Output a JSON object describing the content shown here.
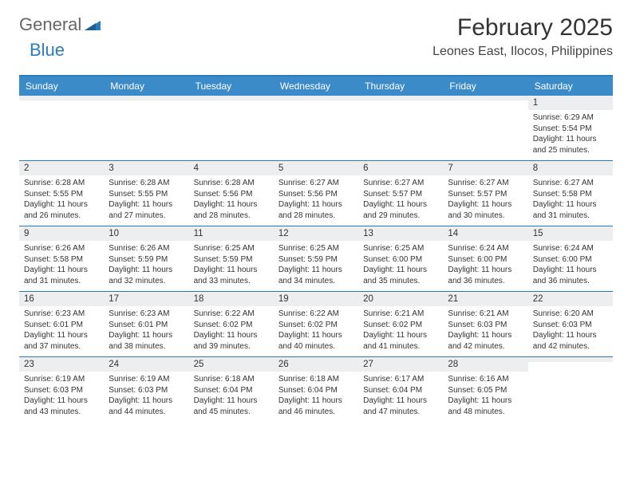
{
  "logo": {
    "part1": "General",
    "part2": "Blue",
    "icon_color": "#2b7bbf"
  },
  "title": "February 2025",
  "location": "Leones East, Ilocos, Philippines",
  "colors": {
    "header_bar": "#3b8bc9",
    "divider": "#2b7bbf",
    "daynum_bg": "#eceeef",
    "text": "#333333",
    "bg": "#ffffff"
  },
  "days_of_week": [
    "Sunday",
    "Monday",
    "Tuesday",
    "Wednesday",
    "Thursday",
    "Friday",
    "Saturday"
  ],
  "weeks": [
    [
      {
        "n": "",
        "l1": "",
        "l2": "",
        "l3": "",
        "l4": ""
      },
      {
        "n": "",
        "l1": "",
        "l2": "",
        "l3": "",
        "l4": ""
      },
      {
        "n": "",
        "l1": "",
        "l2": "",
        "l3": "",
        "l4": ""
      },
      {
        "n": "",
        "l1": "",
        "l2": "",
        "l3": "",
        "l4": ""
      },
      {
        "n": "",
        "l1": "",
        "l2": "",
        "l3": "",
        "l4": ""
      },
      {
        "n": "",
        "l1": "",
        "l2": "",
        "l3": "",
        "l4": ""
      },
      {
        "n": "1",
        "l1": "Sunrise: 6:29 AM",
        "l2": "Sunset: 5:54 PM",
        "l3": "Daylight: 11 hours",
        "l4": "and 25 minutes."
      }
    ],
    [
      {
        "n": "2",
        "l1": "Sunrise: 6:28 AM",
        "l2": "Sunset: 5:55 PM",
        "l3": "Daylight: 11 hours",
        "l4": "and 26 minutes."
      },
      {
        "n": "3",
        "l1": "Sunrise: 6:28 AM",
        "l2": "Sunset: 5:55 PM",
        "l3": "Daylight: 11 hours",
        "l4": "and 27 minutes."
      },
      {
        "n": "4",
        "l1": "Sunrise: 6:28 AM",
        "l2": "Sunset: 5:56 PM",
        "l3": "Daylight: 11 hours",
        "l4": "and 28 minutes."
      },
      {
        "n": "5",
        "l1": "Sunrise: 6:27 AM",
        "l2": "Sunset: 5:56 PM",
        "l3": "Daylight: 11 hours",
        "l4": "and 28 minutes."
      },
      {
        "n": "6",
        "l1": "Sunrise: 6:27 AM",
        "l2": "Sunset: 5:57 PM",
        "l3": "Daylight: 11 hours",
        "l4": "and 29 minutes."
      },
      {
        "n": "7",
        "l1": "Sunrise: 6:27 AM",
        "l2": "Sunset: 5:57 PM",
        "l3": "Daylight: 11 hours",
        "l4": "and 30 minutes."
      },
      {
        "n": "8",
        "l1": "Sunrise: 6:27 AM",
        "l2": "Sunset: 5:58 PM",
        "l3": "Daylight: 11 hours",
        "l4": "and 31 minutes."
      }
    ],
    [
      {
        "n": "9",
        "l1": "Sunrise: 6:26 AM",
        "l2": "Sunset: 5:58 PM",
        "l3": "Daylight: 11 hours",
        "l4": "and 31 minutes."
      },
      {
        "n": "10",
        "l1": "Sunrise: 6:26 AM",
        "l2": "Sunset: 5:59 PM",
        "l3": "Daylight: 11 hours",
        "l4": "and 32 minutes."
      },
      {
        "n": "11",
        "l1": "Sunrise: 6:25 AM",
        "l2": "Sunset: 5:59 PM",
        "l3": "Daylight: 11 hours",
        "l4": "and 33 minutes."
      },
      {
        "n": "12",
        "l1": "Sunrise: 6:25 AM",
        "l2": "Sunset: 5:59 PM",
        "l3": "Daylight: 11 hours",
        "l4": "and 34 minutes."
      },
      {
        "n": "13",
        "l1": "Sunrise: 6:25 AM",
        "l2": "Sunset: 6:00 PM",
        "l3": "Daylight: 11 hours",
        "l4": "and 35 minutes."
      },
      {
        "n": "14",
        "l1": "Sunrise: 6:24 AM",
        "l2": "Sunset: 6:00 PM",
        "l3": "Daylight: 11 hours",
        "l4": "and 36 minutes."
      },
      {
        "n": "15",
        "l1": "Sunrise: 6:24 AM",
        "l2": "Sunset: 6:00 PM",
        "l3": "Daylight: 11 hours",
        "l4": "and 36 minutes."
      }
    ],
    [
      {
        "n": "16",
        "l1": "Sunrise: 6:23 AM",
        "l2": "Sunset: 6:01 PM",
        "l3": "Daylight: 11 hours",
        "l4": "and 37 minutes."
      },
      {
        "n": "17",
        "l1": "Sunrise: 6:23 AM",
        "l2": "Sunset: 6:01 PM",
        "l3": "Daylight: 11 hours",
        "l4": "and 38 minutes."
      },
      {
        "n": "18",
        "l1": "Sunrise: 6:22 AM",
        "l2": "Sunset: 6:02 PM",
        "l3": "Daylight: 11 hours",
        "l4": "and 39 minutes."
      },
      {
        "n": "19",
        "l1": "Sunrise: 6:22 AM",
        "l2": "Sunset: 6:02 PM",
        "l3": "Daylight: 11 hours",
        "l4": "and 40 minutes."
      },
      {
        "n": "20",
        "l1": "Sunrise: 6:21 AM",
        "l2": "Sunset: 6:02 PM",
        "l3": "Daylight: 11 hours",
        "l4": "and 41 minutes."
      },
      {
        "n": "21",
        "l1": "Sunrise: 6:21 AM",
        "l2": "Sunset: 6:03 PM",
        "l3": "Daylight: 11 hours",
        "l4": "and 42 minutes."
      },
      {
        "n": "22",
        "l1": "Sunrise: 6:20 AM",
        "l2": "Sunset: 6:03 PM",
        "l3": "Daylight: 11 hours",
        "l4": "and 42 minutes."
      }
    ],
    [
      {
        "n": "23",
        "l1": "Sunrise: 6:19 AM",
        "l2": "Sunset: 6:03 PM",
        "l3": "Daylight: 11 hours",
        "l4": "and 43 minutes."
      },
      {
        "n": "24",
        "l1": "Sunrise: 6:19 AM",
        "l2": "Sunset: 6:03 PM",
        "l3": "Daylight: 11 hours",
        "l4": "and 44 minutes."
      },
      {
        "n": "25",
        "l1": "Sunrise: 6:18 AM",
        "l2": "Sunset: 6:04 PM",
        "l3": "Daylight: 11 hours",
        "l4": "and 45 minutes."
      },
      {
        "n": "26",
        "l1": "Sunrise: 6:18 AM",
        "l2": "Sunset: 6:04 PM",
        "l3": "Daylight: 11 hours",
        "l4": "and 46 minutes."
      },
      {
        "n": "27",
        "l1": "Sunrise: 6:17 AM",
        "l2": "Sunset: 6:04 PM",
        "l3": "Daylight: 11 hours",
        "l4": "and 47 minutes."
      },
      {
        "n": "28",
        "l1": "Sunrise: 6:16 AM",
        "l2": "Sunset: 6:05 PM",
        "l3": "Daylight: 11 hours",
        "l4": "and 48 minutes."
      },
      {
        "n": "",
        "l1": "",
        "l2": "",
        "l3": "",
        "l4": ""
      }
    ]
  ]
}
